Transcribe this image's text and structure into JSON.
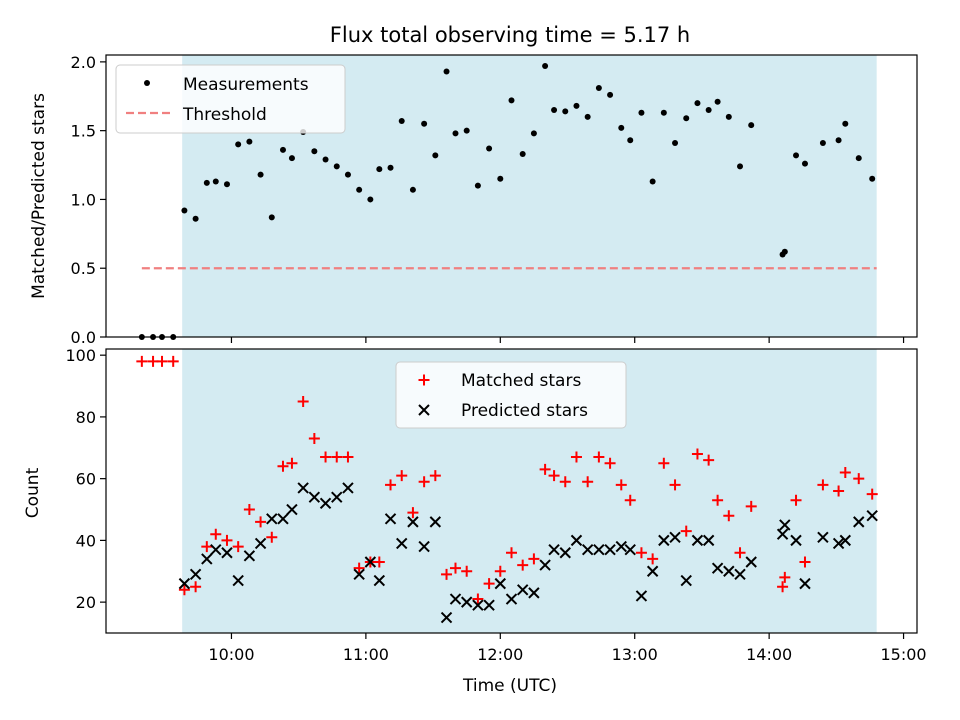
{
  "chart_data": [
    {
      "type": "scatter",
      "title": "Flux total observing time = 5.17 h",
      "xlabel": "",
      "ylabel": "Matched/Predicted stars",
      "ylim": [
        0,
        2.05
      ],
      "xlim": [
        "09:04",
        "15:06"
      ],
      "y_ticks": [
        "0.0",
        "0.5",
        "1.0",
        "1.5",
        "2.0"
      ],
      "shaded_span": [
        "09:38",
        "14:48"
      ],
      "shade_color": "#add8e6",
      "threshold": {
        "y": 0.5,
        "x_start": "09:20",
        "x_end": "14:48",
        "color": "#f08080"
      },
      "legend": {
        "position": "top-left",
        "entries": [
          "Measurements",
          "Threshold"
        ]
      },
      "series": [
        {
          "name": "Measurements",
          "marker": "dot",
          "color": "#000000",
          "points": [
            [
              "09:20",
              0.0
            ],
            [
              "09:25",
              0.0
            ],
            [
              "09:29",
              0.0
            ],
            [
              "09:34",
              0.0
            ],
            [
              "09:39",
              0.92
            ],
            [
              "09:44",
              0.86
            ],
            [
              "09:49",
              1.12
            ],
            [
              "09:53",
              1.13
            ],
            [
              "09:58",
              1.11
            ],
            [
              "10:03",
              1.4
            ],
            [
              "10:08",
              1.42
            ],
            [
              "10:13",
              1.18
            ],
            [
              "10:18",
              0.87
            ],
            [
              "10:23",
              1.36
            ],
            [
              "10:27",
              1.3
            ],
            [
              "10:32",
              1.49
            ],
            [
              "10:37",
              1.35
            ],
            [
              "10:42",
              1.29
            ],
            [
              "10:47",
              1.24
            ],
            [
              "10:52",
              1.18
            ],
            [
              "10:57",
              1.07
            ],
            [
              "11:02",
              1.0
            ],
            [
              "11:06",
              1.22
            ],
            [
              "11:11",
              1.23
            ],
            [
              "11:16",
              1.57
            ],
            [
              "11:21",
              1.07
            ],
            [
              "11:26",
              1.55
            ],
            [
              "11:31",
              1.32
            ],
            [
              "11:36",
              1.93
            ],
            [
              "11:40",
              1.48
            ],
            [
              "11:45",
              1.5
            ],
            [
              "11:50",
              1.1
            ],
            [
              "11:55",
              1.37
            ],
            [
              "12:00",
              1.15
            ],
            [
              "12:05",
              1.72
            ],
            [
              "12:10",
              1.33
            ],
            [
              "12:15",
              1.48
            ],
            [
              "12:20",
              1.97
            ],
            [
              "12:24",
              1.65
            ],
            [
              "12:29",
              1.64
            ],
            [
              "12:34",
              1.68
            ],
            [
              "12:39",
              1.6
            ],
            [
              "12:44",
              1.81
            ],
            [
              "12:49",
              1.76
            ],
            [
              "12:54",
              1.52
            ],
            [
              "12:58",
              1.43
            ],
            [
              "13:03",
              1.63
            ],
            [
              "13:08",
              1.13
            ],
            [
              "13:13",
              1.63
            ],
            [
              "13:18",
              1.41
            ],
            [
              "13:23",
              1.59
            ],
            [
              "13:28",
              1.7
            ],
            [
              "13:33",
              1.65
            ],
            [
              "13:37",
              1.71
            ],
            [
              "13:42",
              1.6
            ],
            [
              "13:47",
              1.24
            ],
            [
              "13:52",
              1.54
            ],
            [
              "14:06",
              0.6
            ],
            [
              "14:07",
              0.62
            ],
            [
              "14:12",
              1.32
            ],
            [
              "14:16",
              1.26
            ],
            [
              "14:24",
              1.41
            ],
            [
              "14:31",
              1.43
            ],
            [
              "14:34",
              1.55
            ],
            [
              "14:40",
              1.3
            ],
            [
              "14:46",
              1.15
            ]
          ]
        }
      ]
    },
    {
      "type": "scatter",
      "title": "",
      "xlabel": "Time (UTC)",
      "ylabel": "Count",
      "ylim": [
        10,
        102
      ],
      "xlim": [
        "09:04",
        "15:06"
      ],
      "x_ticks": [
        "10:00",
        "11:00",
        "12:00",
        "13:00",
        "14:00",
        "15:00"
      ],
      "y_ticks": [
        "20",
        "40",
        "60",
        "80",
        "100"
      ],
      "shaded_span": [
        "09:38",
        "14:48"
      ],
      "shade_color": "#add8e6",
      "legend": {
        "position": "top-center",
        "entries": [
          "Matched stars",
          "Predicted stars"
        ]
      },
      "series": [
        {
          "name": "Matched stars",
          "marker": "plus",
          "color": "#ff0000",
          "points": [
            [
              "09:20",
              98
            ],
            [
              "09:25",
              98
            ],
            [
              "09:29",
              98
            ],
            [
              "09:34",
              98
            ],
            [
              "09:39",
              24
            ],
            [
              "09:44",
              25
            ],
            [
              "09:49",
              38
            ],
            [
              "09:53",
              42
            ],
            [
              "09:58",
              40
            ],
            [
              "10:03",
              38
            ],
            [
              "10:08",
              50
            ],
            [
              "10:13",
              46
            ],
            [
              "10:18",
              41
            ],
            [
              "10:23",
              64
            ],
            [
              "10:27",
              65
            ],
            [
              "10:32",
              85
            ],
            [
              "10:37",
              73
            ],
            [
              "10:42",
              67
            ],
            [
              "10:47",
              67
            ],
            [
              "10:52",
              67
            ],
            [
              "10:57",
              31
            ],
            [
              "11:02",
              33
            ],
            [
              "11:06",
              33
            ],
            [
              "11:11",
              58
            ],
            [
              "11:16",
              61
            ],
            [
              "11:21",
              49
            ],
            [
              "11:26",
              59
            ],
            [
              "11:31",
              61
            ],
            [
              "11:36",
              29
            ],
            [
              "11:40",
              31
            ],
            [
              "11:45",
              30
            ],
            [
              "11:50",
              21
            ],
            [
              "11:55",
              26
            ],
            [
              "12:00",
              30
            ],
            [
              "12:05",
              36
            ],
            [
              "12:10",
              32
            ],
            [
              "12:15",
              34
            ],
            [
              "12:20",
              63
            ],
            [
              "12:24",
              61
            ],
            [
              "12:29",
              59
            ],
            [
              "12:34",
              67
            ],
            [
              "12:39",
              59
            ],
            [
              "12:44",
              67
            ],
            [
              "12:49",
              65
            ],
            [
              "12:54",
              58
            ],
            [
              "12:58",
              53
            ],
            [
              "13:03",
              36
            ],
            [
              "13:08",
              34
            ],
            [
              "13:13",
              65
            ],
            [
              "13:18",
              58
            ],
            [
              "13:23",
              43
            ],
            [
              "13:28",
              68
            ],
            [
              "13:33",
              66
            ],
            [
              "13:37",
              53
            ],
            [
              "13:42",
              48
            ],
            [
              "13:47",
              36
            ],
            [
              "13:52",
              51
            ],
            [
              "14:06",
              25
            ],
            [
              "14:07",
              28
            ],
            [
              "14:12",
              53
            ],
            [
              "14:16",
              33
            ],
            [
              "14:24",
              58
            ],
            [
              "14:31",
              56
            ],
            [
              "14:34",
              62
            ],
            [
              "14:40",
              60
            ],
            [
              "14:46",
              55
            ]
          ]
        },
        {
          "name": "Predicted stars",
          "marker": "x",
          "color": "#000000",
          "points": [
            [
              "09:39",
              26
            ],
            [
              "09:44",
              29
            ],
            [
              "09:49",
              34
            ],
            [
              "09:53",
              37
            ],
            [
              "09:58",
              36
            ],
            [
              "10:03",
              27
            ],
            [
              "10:08",
              35
            ],
            [
              "10:13",
              39
            ],
            [
              "10:18",
              47
            ],
            [
              "10:23",
              47
            ],
            [
              "10:27",
              50
            ],
            [
              "10:32",
              57
            ],
            [
              "10:37",
              54
            ],
            [
              "10:42",
              52
            ],
            [
              "10:47",
              54
            ],
            [
              "10:52",
              57
            ],
            [
              "10:57",
              29
            ],
            [
              "11:02",
              33
            ],
            [
              "11:06",
              27
            ],
            [
              "11:11",
              47
            ],
            [
              "11:16",
              39
            ],
            [
              "11:21",
              46
            ],
            [
              "11:26",
              38
            ],
            [
              "11:31",
              46
            ],
            [
              "11:36",
              15
            ],
            [
              "11:40",
              21
            ],
            [
              "11:45",
              20
            ],
            [
              "11:50",
              19
            ],
            [
              "11:55",
              19
            ],
            [
              "12:00",
              26
            ],
            [
              "12:05",
              21
            ],
            [
              "12:10",
              24
            ],
            [
              "12:15",
              23
            ],
            [
              "12:20",
              32
            ],
            [
              "12:24",
              37
            ],
            [
              "12:29",
              36
            ],
            [
              "12:34",
              40
            ],
            [
              "12:39",
              37
            ],
            [
              "12:44",
              37
            ],
            [
              "12:49",
              37
            ],
            [
              "12:54",
              38
            ],
            [
              "12:58",
              37
            ],
            [
              "13:03",
              22
            ],
            [
              "13:08",
              30
            ],
            [
              "13:13",
              40
            ],
            [
              "13:18",
              41
            ],
            [
              "13:23",
              27
            ],
            [
              "13:28",
              40
            ],
            [
              "13:33",
              40
            ],
            [
              "13:37",
              31
            ],
            [
              "13:42",
              30
            ],
            [
              "13:47",
              29
            ],
            [
              "13:52",
              33
            ],
            [
              "14:06",
              42
            ],
            [
              "14:07",
              45
            ],
            [
              "14:12",
              40
            ],
            [
              "14:16",
              26
            ],
            [
              "14:24",
              41
            ],
            [
              "14:31",
              39
            ],
            [
              "14:34",
              40
            ],
            [
              "14:40",
              46
            ],
            [
              "14:46",
              48
            ]
          ]
        }
      ]
    }
  ]
}
